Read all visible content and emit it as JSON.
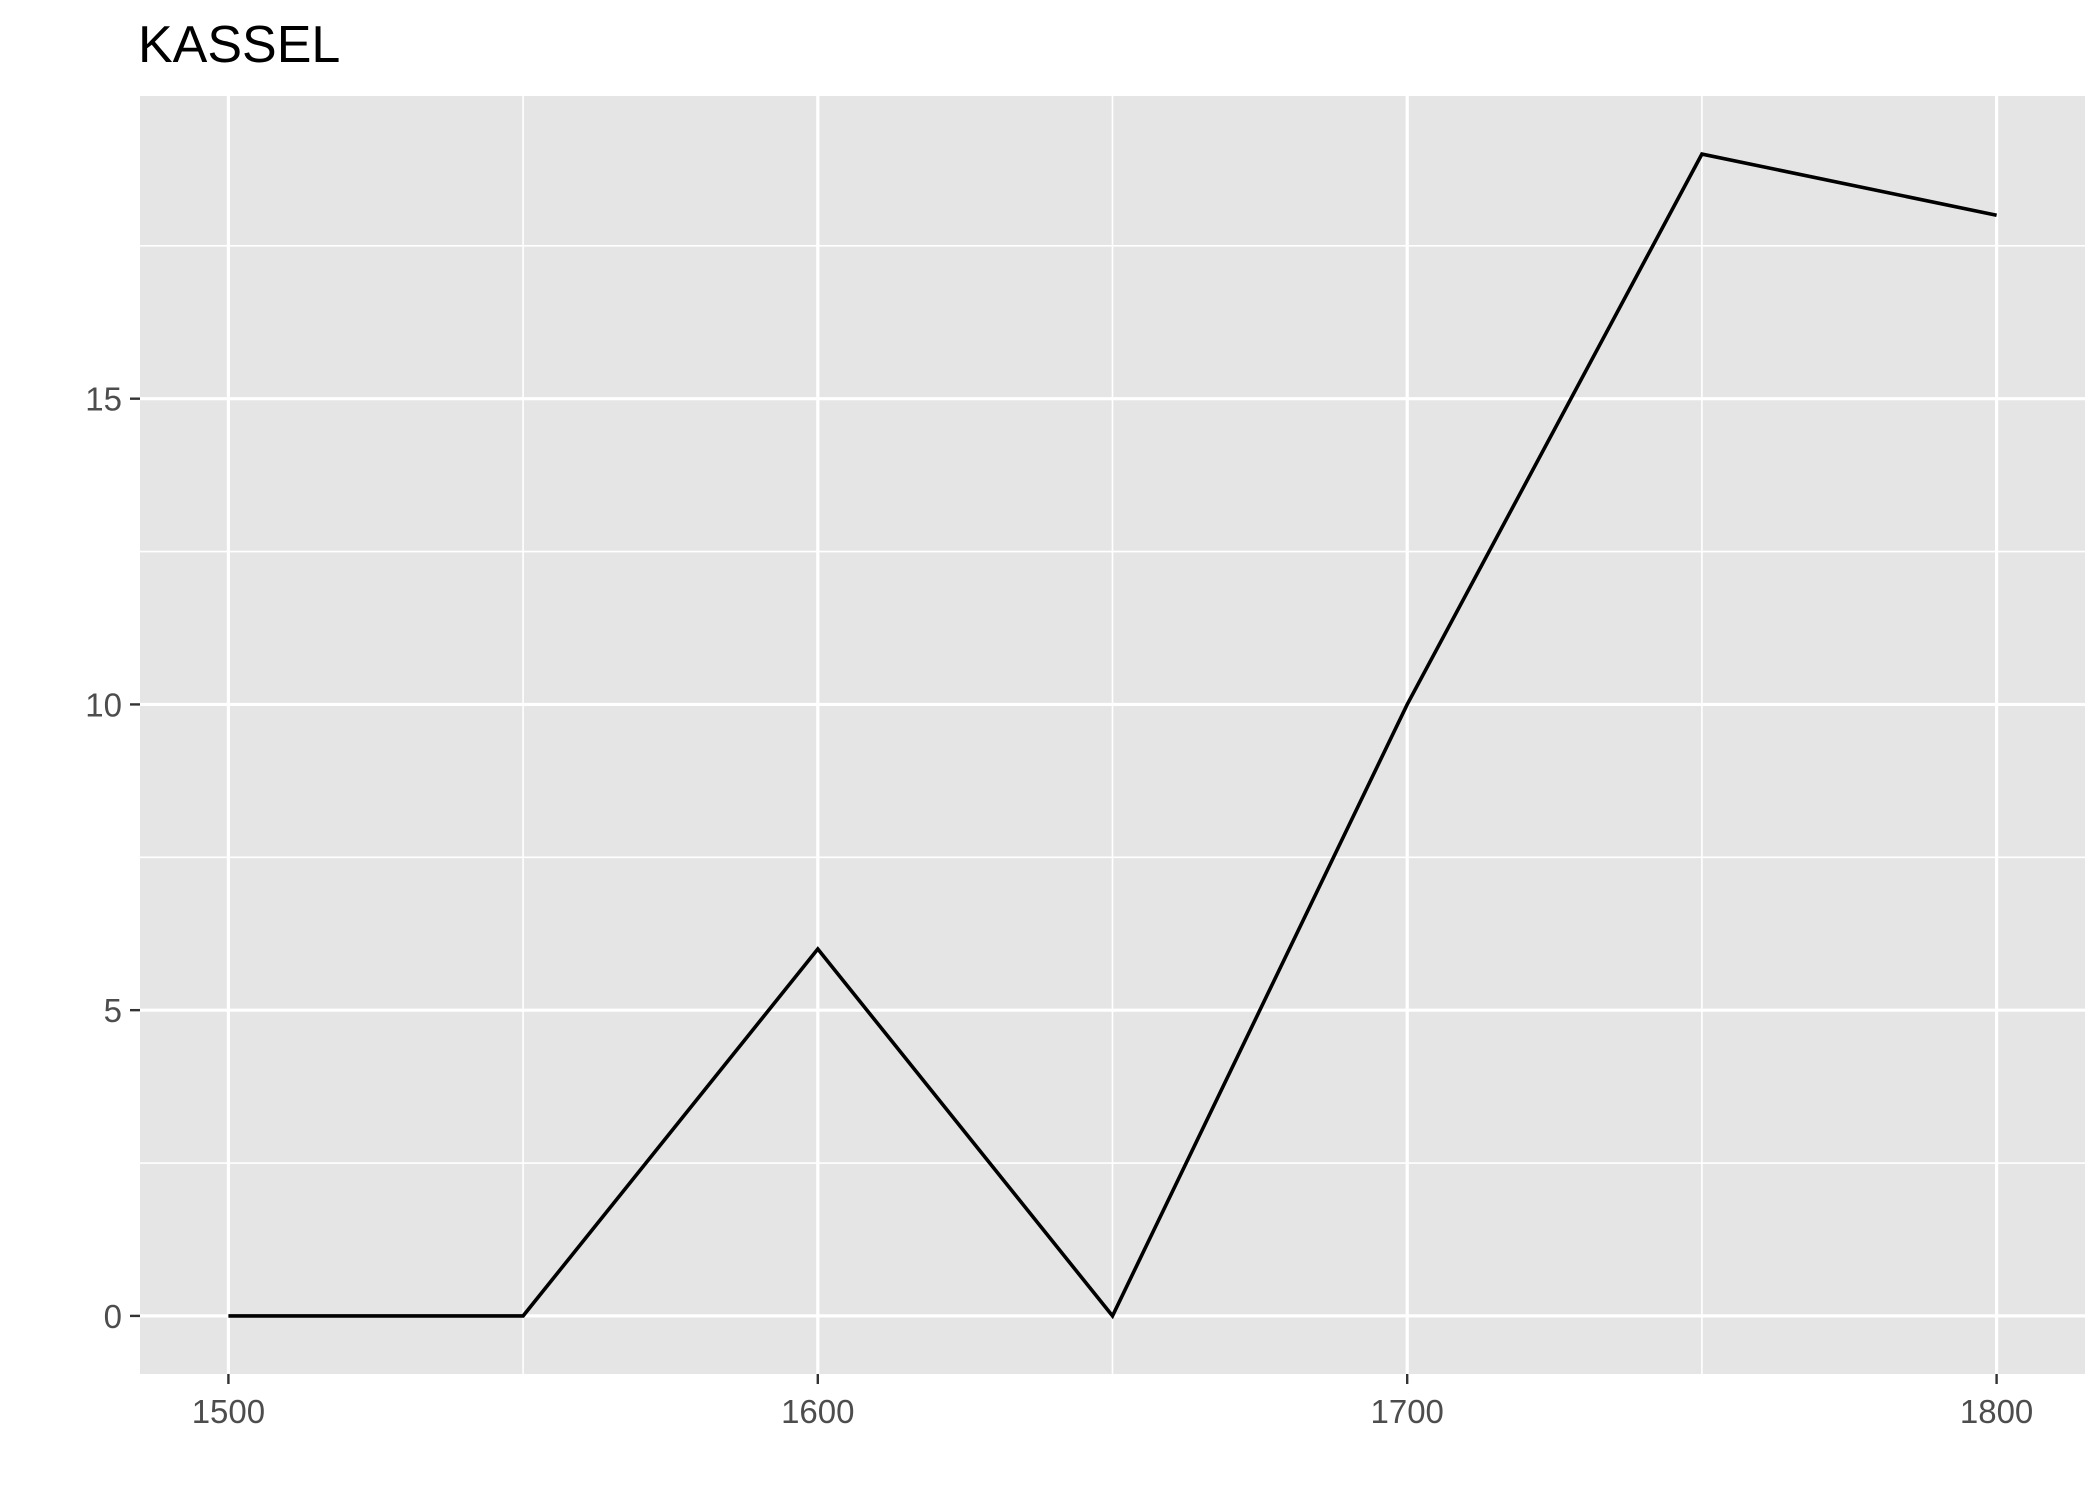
{
  "chart_data": {
    "type": "line",
    "title": "KASSEL",
    "xlabel": "",
    "ylabel": "",
    "x": [
      1500,
      1550,
      1600,
      1650,
      1700,
      1750,
      1800
    ],
    "series": [
      {
        "values": [
          0,
          0,
          6,
          0,
          10,
          19,
          18
        ]
      }
    ],
    "xlim": [
      1485,
      1815
    ],
    "ylim": [
      -0.95,
      19.95
    ],
    "x_ticks": [
      1500,
      1600,
      1700,
      1800
    ],
    "y_ticks": [
      0,
      5,
      10,
      15
    ],
    "x_minor_gridlines": [
      1550,
      1650,
      1750
    ],
    "y_minor_gridlines": [
      2.5,
      7.5,
      12.5,
      17.5
    ],
    "grid": true,
    "legend": "none",
    "colors": {
      "panel_background": "#e5e5e5",
      "gridline": "#ffffff",
      "line": "#000000",
      "tick_label": "#4d4d4d",
      "tick_mark": "#333333",
      "title": "#000000"
    }
  }
}
